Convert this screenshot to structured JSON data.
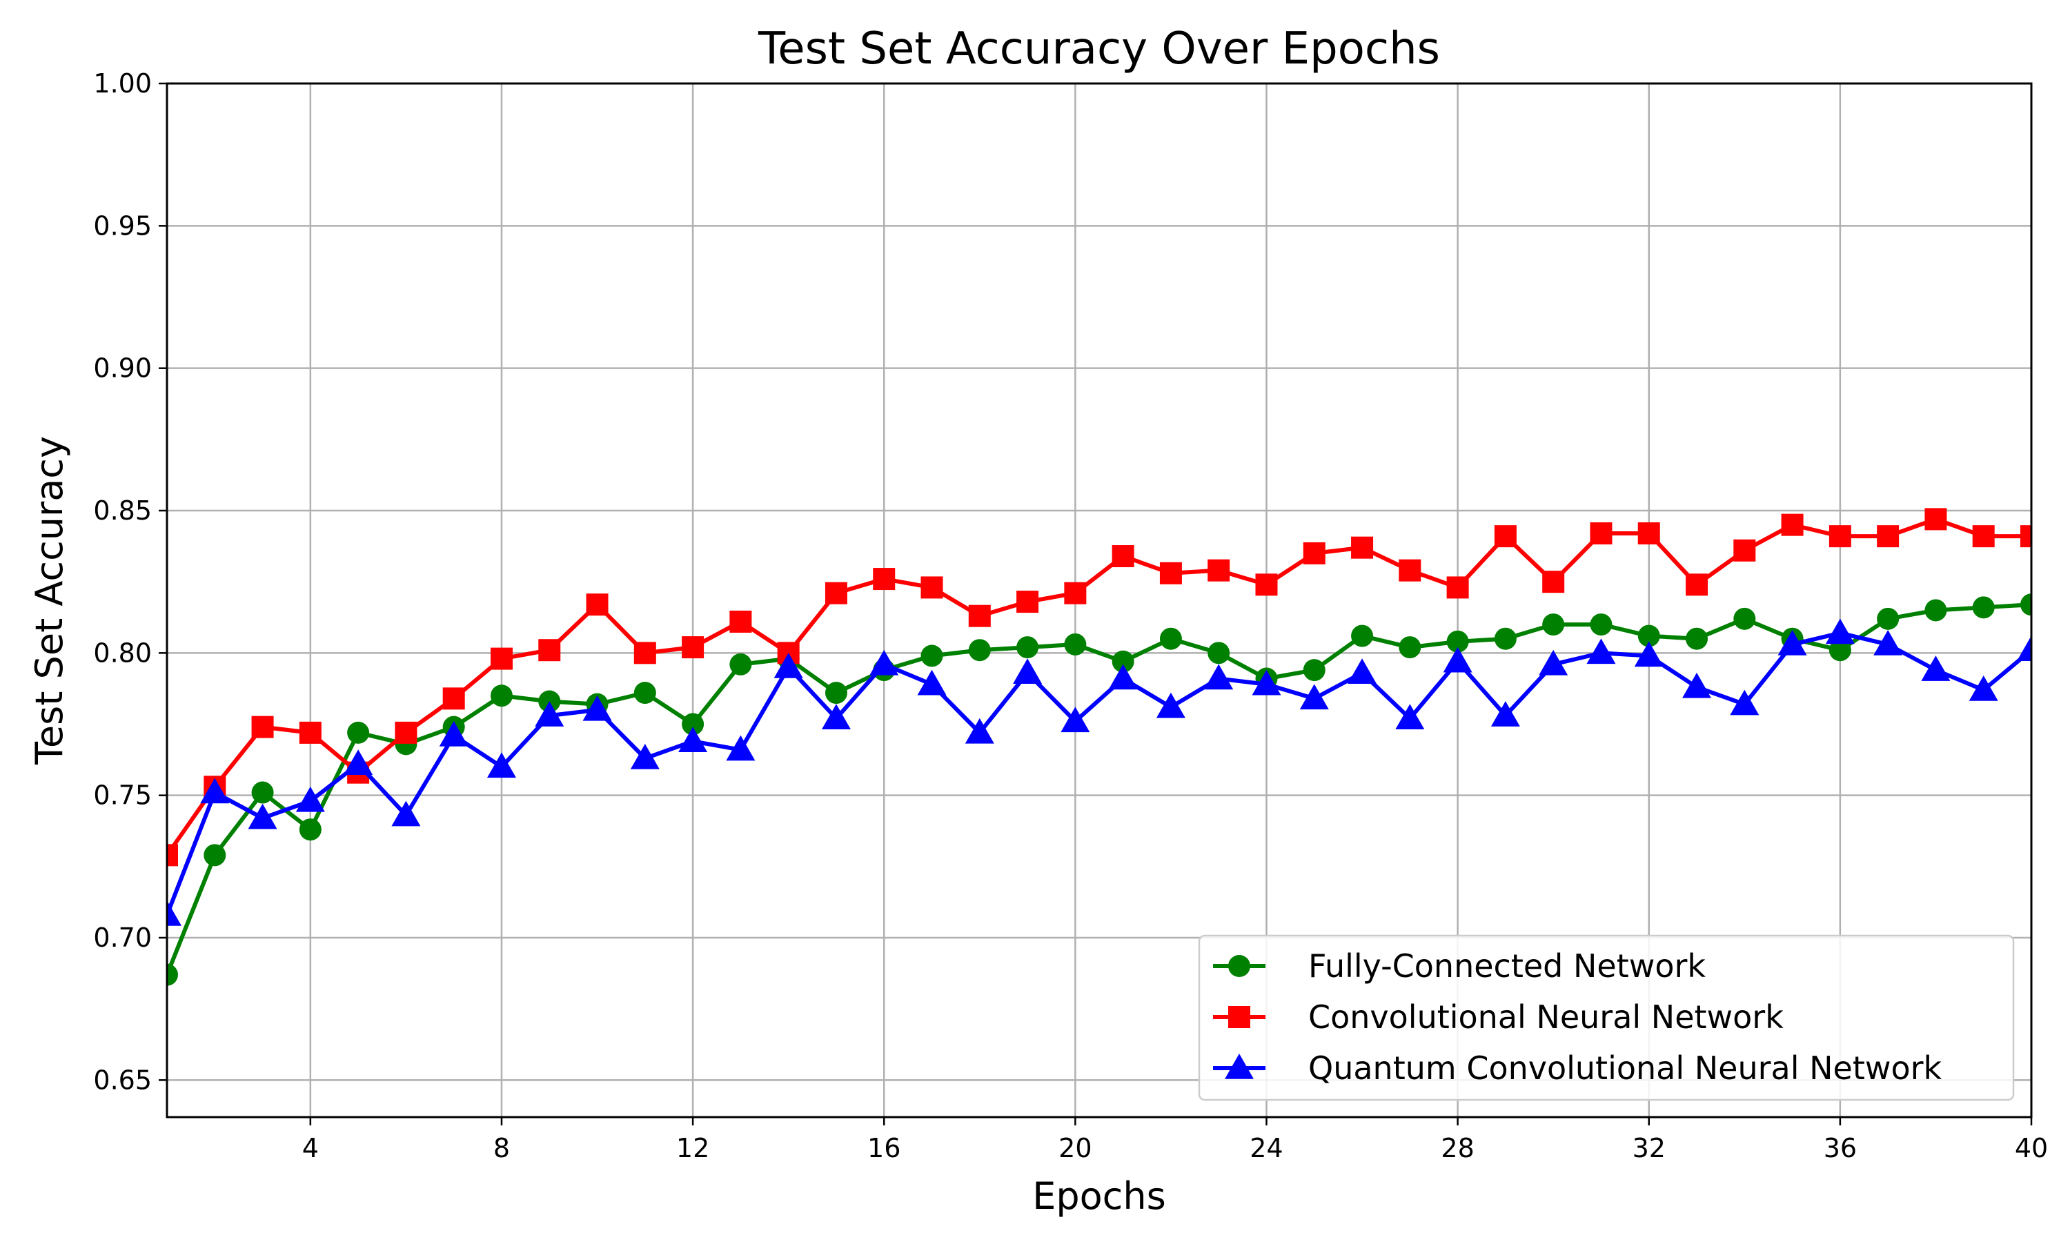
{
  "chart_data": {
    "type": "line",
    "title": "Test Set Accuracy Over Epochs",
    "xlabel": "Epochs",
    "ylabel": "Test Set Accuracy",
    "xlim": [
      1,
      40
    ],
    "ylim": [
      0.637,
      1.0
    ],
    "x_ticks": [
      4,
      8,
      12,
      16,
      20,
      24,
      28,
      32,
      36,
      40
    ],
    "x_tick_labels": [
      "4",
      "8",
      "12",
      "16",
      "20",
      "24",
      "28",
      "32",
      "36",
      "40"
    ],
    "y_ticks": [
      0.65,
      0.7,
      0.75,
      0.8,
      0.85,
      0.9,
      0.95,
      1.0
    ],
    "y_tick_labels": [
      "0.65",
      "0.70",
      "0.75",
      "0.80",
      "0.85",
      "0.90",
      "0.95",
      "1.00"
    ],
    "grid": true,
    "legend_position": "lower-right",
    "x": [
      1,
      2,
      3,
      4,
      5,
      6,
      7,
      8,
      9,
      10,
      11,
      12,
      13,
      14,
      15,
      16,
      17,
      18,
      19,
      20,
      21,
      22,
      23,
      24,
      25,
      26,
      27,
      28,
      29,
      30,
      31,
      32,
      33,
      34,
      35,
      36,
      37,
      38,
      39,
      40
    ],
    "series": [
      {
        "name": "Fully-Connected Network",
        "color": "#008000",
        "marker": "circle",
        "values": [
          0.687,
          0.729,
          0.751,
          0.738,
          0.772,
          0.768,
          0.774,
          0.785,
          0.783,
          0.782,
          0.786,
          0.775,
          0.796,
          0.798,
          0.786,
          0.794,
          0.799,
          0.801,
          0.802,
          0.803,
          0.797,
          0.805,
          0.8,
          0.791,
          0.794,
          0.806,
          0.802,
          0.804,
          0.805,
          0.81,
          0.81,
          0.806,
          0.805,
          0.812,
          0.805,
          0.801,
          0.812,
          0.815,
          0.816,
          0.817
        ]
      },
      {
        "name": "Convolutional Neural Network",
        "color": "#ff0000",
        "marker": "square",
        "values": [
          0.729,
          0.753,
          0.774,
          0.772,
          0.758,
          0.772,
          0.784,
          0.798,
          0.801,
          0.817,
          0.8,
          0.802,
          0.811,
          0.8,
          0.821,
          0.826,
          0.823,
          0.813,
          0.818,
          0.821,
          0.834,
          0.828,
          0.829,
          0.824,
          0.835,
          0.837,
          0.829,
          0.823,
          0.841,
          0.825,
          0.842,
          0.842,
          0.824,
          0.836,
          0.845,
          0.841,
          0.841,
          0.847,
          0.841,
          0.841
        ]
      },
      {
        "name": "Quantum Convolutional Neural Network",
        "color": "#0000ff",
        "marker": "triangle",
        "values": [
          0.708,
          0.751,
          0.742,
          0.748,
          0.761,
          0.743,
          0.771,
          0.76,
          0.778,
          0.78,
          0.763,
          0.769,
          0.766,
          0.795,
          0.777,
          0.796,
          0.789,
          0.772,
          0.793,
          0.776,
          0.791,
          0.781,
          0.791,
          0.789,
          0.784,
          0.793,
          0.777,
          0.797,
          0.778,
          0.796,
          0.8,
          0.799,
          0.788,
          0.782,
          0.803,
          0.807,
          0.803,
          0.794,
          0.787,
          0.801
        ]
      }
    ]
  }
}
